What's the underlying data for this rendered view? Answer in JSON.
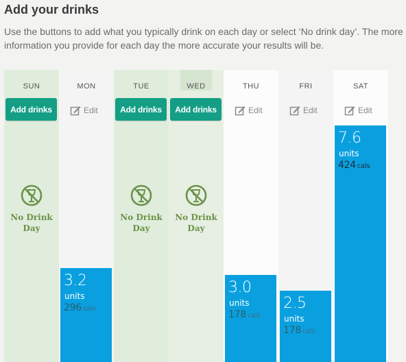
{
  "title": "Add your drinks",
  "description": "Use the buttons to add what you typically drink on each day or select ‘No drink day’. The more information you provide for each day the more accurate your results will be.",
  "labels": {
    "add_drinks": "Add drinks",
    "edit": "Edit",
    "no_drink_line1": "No Drink",
    "no_drink_line2": "Day",
    "units": "units",
    "cals_suffix": "cals"
  },
  "days": [
    {
      "name": "SUN",
      "state": "no-drink"
    },
    {
      "name": "MON",
      "state": "drinks",
      "units": "3.2",
      "cals": "296",
      "units_value": 3.2
    },
    {
      "name": "TUE",
      "state": "no-drink"
    },
    {
      "name": "WED",
      "state": "no-drink"
    },
    {
      "name": "THU",
      "state": "drinks",
      "units": "3.0",
      "cals": "178",
      "units_value": 3.0
    },
    {
      "name": "FRI",
      "state": "drinks",
      "units": "2.5",
      "cals": "178",
      "units_value": 2.5
    },
    {
      "name": "SAT",
      "state": "drinks",
      "units": "7.6",
      "cals": "424",
      "units_value": 7.6
    }
  ],
  "colors": {
    "button": "#149e86",
    "bar": "#0aa0df",
    "no_drink": "#6b9248",
    "no_drink_bg": "#e0eddc"
  }
}
